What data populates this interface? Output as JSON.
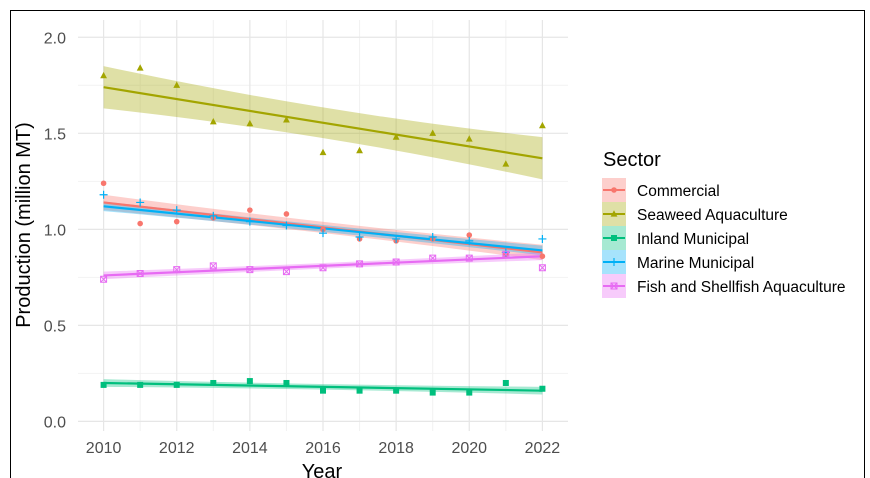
{
  "chart_data": {
    "type": "scatter",
    "xlabel": "Year",
    "ylabel": "Production (million MT)",
    "xlim": [
      2009.3,
      2022.7
    ],
    "ylim": [
      -0.05,
      2.09
    ],
    "x_ticks": [
      "2010",
      "2012",
      "2014",
      "2016",
      "2018",
      "2020",
      "2022"
    ],
    "y_ticks": [
      "0.0",
      "0.5",
      "1.0",
      "1.5",
      "2.0"
    ],
    "grid": true,
    "legend_title": "Sector",
    "legend_position": "right",
    "series": [
      {
        "name": "Commercial",
        "color": "#F8766D",
        "marker": "circle",
        "x": [
          2010,
          2011,
          2012,
          2013,
          2014,
          2015,
          2016,
          2017,
          2018,
          2019,
          2020,
          2021,
          2022
        ],
        "y": [
          1.24,
          1.03,
          1.04,
          1.06,
          1.1,
          1.08,
          1.0,
          0.95,
          0.94,
          0.95,
          0.97,
          0.87,
          0.86
        ],
        "trend": [
          1.14,
          0.88
        ],
        "band": 0.04
      },
      {
        "name": "Seaweed Aquaculture",
        "color": "#A3A500",
        "marker": "triangle",
        "x": [
          2010,
          2011,
          2012,
          2013,
          2014,
          2015,
          2016,
          2017,
          2018,
          2019,
          2020,
          2021,
          2022
        ],
        "y": [
          1.8,
          1.84,
          1.75,
          1.56,
          1.55,
          1.57,
          1.4,
          1.41,
          1.48,
          1.5,
          1.47,
          1.34,
          1.54
        ],
        "trend": [
          1.74,
          1.37
        ],
        "band": 0.11
      },
      {
        "name": "Inland Municipal",
        "color": "#00BF7D",
        "marker": "square",
        "x": [
          2010,
          2011,
          2012,
          2013,
          2014,
          2015,
          2016,
          2017,
          2018,
          2019,
          2020,
          2021,
          2022
        ],
        "y": [
          0.19,
          0.19,
          0.19,
          0.2,
          0.21,
          0.2,
          0.16,
          0.16,
          0.16,
          0.15,
          0.15,
          0.2,
          0.17
        ],
        "trend": [
          0.2,
          0.16
        ],
        "band": 0.02
      },
      {
        "name": "Marine Municipal",
        "color": "#00B0F6",
        "marker": "plus",
        "x": [
          2010,
          2011,
          2012,
          2013,
          2014,
          2015,
          2016,
          2017,
          2018,
          2019,
          2020,
          2021,
          2022
        ],
        "y": [
          1.18,
          1.14,
          1.1,
          1.07,
          1.04,
          1.02,
          0.98,
          0.96,
          0.95,
          0.96,
          0.94,
          0.88,
          0.95
        ],
        "trend": [
          1.12,
          0.89
        ],
        "band": 0.025
      },
      {
        "name": "Fish and Shellfish Aquaculture",
        "color": "#E76BF3",
        "marker": "boxx",
        "x": [
          2010,
          2011,
          2012,
          2013,
          2014,
          2015,
          2016,
          2017,
          2018,
          2019,
          2020,
          2021,
          2022
        ],
        "y": [
          0.74,
          0.77,
          0.79,
          0.81,
          0.79,
          0.78,
          0.8,
          0.82,
          0.83,
          0.85,
          0.85,
          0.87,
          0.8
        ],
        "trend": [
          0.76,
          0.86
        ],
        "band": 0.02
      }
    ]
  }
}
